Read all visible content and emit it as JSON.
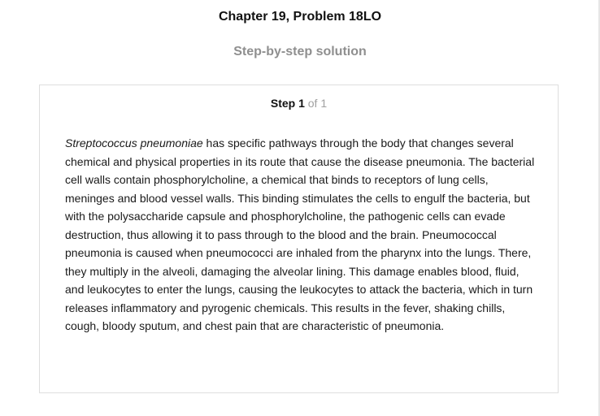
{
  "header": {
    "chapter_title": "Chapter 19, Problem 18LO",
    "subtitle": "Step-by-step solution"
  },
  "step": {
    "label": "Step 1",
    "of_text": "of 1",
    "organism": "Streptococcus pneumoniae",
    "body_text": " has specific pathways through the body that changes several chemical and physical properties in its route that cause the disease pneumonia. The bacterial cell walls contain phosphorylcholine, a chemical that binds to receptors of lung cells, meninges and blood vessel walls. This binding stimulates the cells to engulf the bacteria, but with the polysaccharide capsule and phosphorylcholine, the pathogenic cells can evade destruction, thus allowing it to pass through to the blood and the brain. Pneumococcal pneumonia is caused when pneumococci are inhaled from the pharynx into the lungs. There, they multiply in the alveoli, damaging the alveolar lining. This damage enables blood, fluid, and leukocytes to enter the lungs, causing the leukocytes to attack the bacteria, which in turn releases inflammatory and pyrogenic chemicals. This results in the fever, shaking chills, cough, bloody sputum, and chest pain that are characteristic of pneumonia."
  }
}
